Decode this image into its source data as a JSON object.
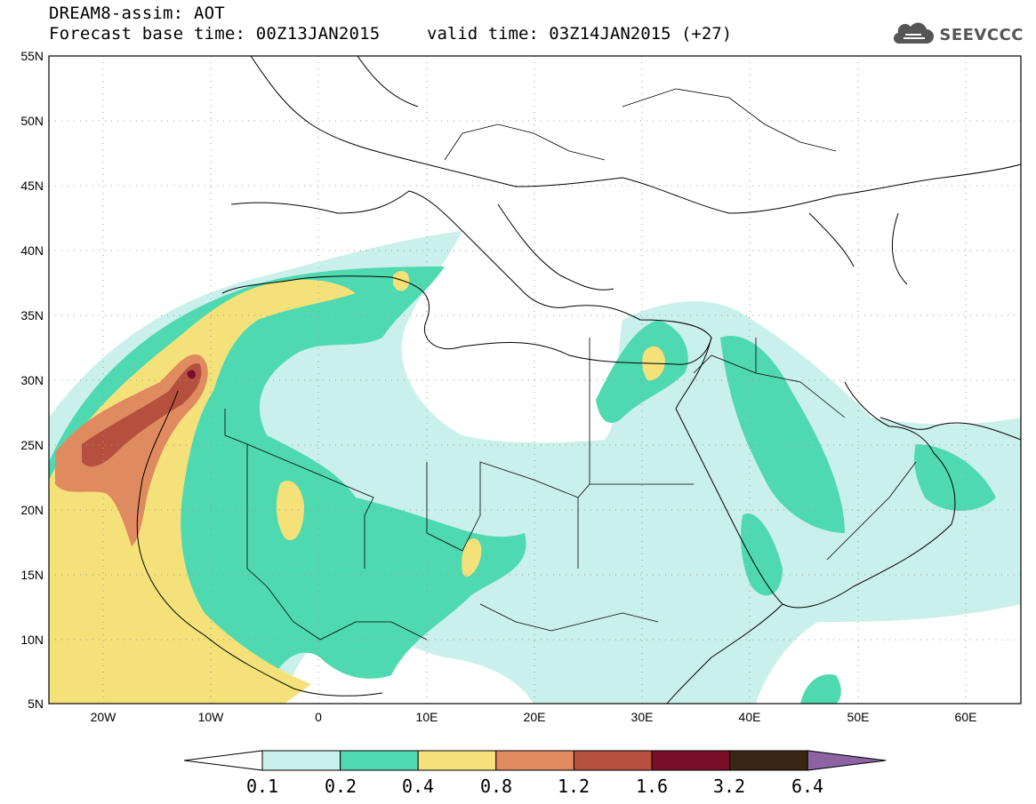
{
  "header": {
    "line1": "DREAM8-assim: AOT",
    "line2": "Forecast base time: 00Z13JAN2015",
    "valid": "valid time: 03Z14JAN2015 (+27)"
  },
  "logo": {
    "text": "SEEVCCC",
    "icon": "cloud-icon",
    "color": "#555555"
  },
  "map": {
    "lat_labels": [
      "55N",
      "50N",
      "45N",
      "40N",
      "35N",
      "30N",
      "25N",
      "20N",
      "15N",
      "10N",
      "5N"
    ],
    "lon_labels": [
      "20W",
      "10W",
      "0",
      "10E",
      "20E",
      "30E",
      "40E",
      "50E",
      "60E"
    ],
    "grid": true
  },
  "colorbar": {
    "colors": [
      "#ffffff",
      "#c9f0ea",
      "#4fd9b0",
      "#f5e17a",
      "#e08a5f",
      "#b5503f",
      "#7a0f2a",
      "#3a2614",
      "#8d63a3"
    ],
    "labels": [
      "0.1",
      "0.2",
      "0.4",
      "0.8",
      "1.2",
      "1.6",
      "3.2",
      "6.4"
    ]
  }
}
